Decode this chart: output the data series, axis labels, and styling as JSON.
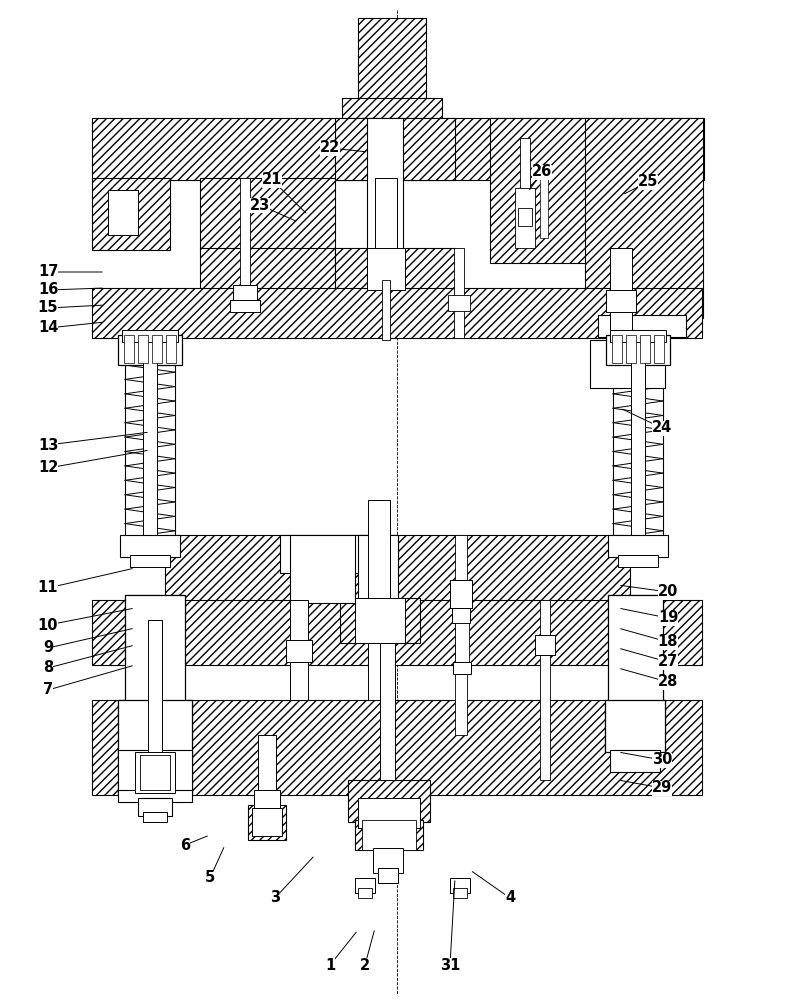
{
  "bg_color": "#ffffff",
  "fig_width": 7.94,
  "fig_height": 10.0,
  "dpi": 100,
  "annotations": [
    [
      "1",
      330,
      965,
      358,
      930
    ],
    [
      "2",
      365,
      965,
      375,
      928
    ],
    [
      "31",
      450,
      965,
      455,
      878
    ],
    [
      "3",
      275,
      898,
      315,
      855
    ],
    [
      "4",
      510,
      898,
      470,
      870
    ],
    [
      "5",
      210,
      878,
      225,
      845
    ],
    [
      "6",
      185,
      845,
      210,
      835
    ],
    [
      "7",
      48,
      690,
      135,
      665
    ],
    [
      "8",
      48,
      668,
      135,
      645
    ],
    [
      "9",
      48,
      648,
      135,
      628
    ],
    [
      "10",
      48,
      625,
      135,
      608
    ],
    [
      "11",
      48,
      588,
      135,
      568
    ],
    [
      "12",
      48,
      468,
      150,
      450
    ],
    [
      "13",
      48,
      445,
      150,
      432
    ],
    [
      "14",
      48,
      328,
      105,
      322
    ],
    [
      "15",
      48,
      308,
      105,
      305
    ],
    [
      "16",
      48,
      290,
      105,
      288
    ],
    [
      "17",
      48,
      272,
      105,
      272
    ],
    [
      "18",
      668,
      642,
      618,
      628
    ],
    [
      "19",
      668,
      618,
      618,
      608
    ],
    [
      "20",
      668,
      592,
      618,
      585
    ],
    [
      "21",
      272,
      180,
      308,
      215
    ],
    [
      "22",
      330,
      148,
      368,
      152
    ],
    [
      "23",
      260,
      205,
      298,
      222
    ],
    [
      "24",
      662,
      428,
      620,
      408
    ],
    [
      "25",
      648,
      182,
      622,
      195
    ],
    [
      "26",
      542,
      172,
      528,
      192
    ],
    [
      "27",
      668,
      662,
      618,
      648
    ],
    [
      "28",
      668,
      682,
      618,
      668
    ],
    [
      "29",
      662,
      788,
      618,
      780
    ],
    [
      "30",
      662,
      760,
      618,
      752
    ]
  ]
}
